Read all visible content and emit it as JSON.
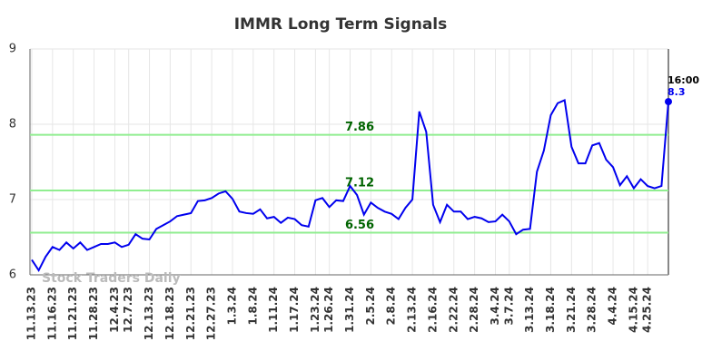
{
  "chart_data": {
    "type": "line",
    "title": "IMMR Long Term Signals",
    "watermark": "Stock Traders Daily",
    "annotation": "16:00",
    "categories": [
      "11.13.23",
      null,
      null,
      "11.16.23",
      null,
      null,
      "11.21.23",
      null,
      null,
      "11.28.23",
      null,
      null,
      "12.4.23",
      null,
      "12.7.23",
      null,
      null,
      "12.13.23",
      null,
      null,
      "12.18.23",
      null,
      null,
      "12.21.23",
      null,
      null,
      "12.27.23",
      null,
      null,
      "1.3.24",
      null,
      null,
      "1.8.24",
      null,
      null,
      "1.11.24",
      null,
      null,
      "1.17.24",
      null,
      null,
      "1.23.24",
      null,
      "1.26.24",
      null,
      null,
      "1.31.24",
      null,
      null,
      "2.5.24",
      null,
      null,
      "2.8.24",
      null,
      null,
      "2.13.24",
      null,
      null,
      "2.16.24",
      null,
      null,
      "2.22.24",
      null,
      null,
      "2.28.24",
      null,
      null,
      "3.4.24",
      null,
      "3.7.24",
      null,
      null,
      "3.13.24",
      null,
      null,
      "3.18.24",
      null,
      null,
      "3.21.24",
      null,
      null,
      "3.28.24",
      null,
      null,
      "4.4.24",
      null,
      null,
      "4.15.24",
      null,
      "4.25.24",
      null,
      null,
      null
    ],
    "series": [
      {
        "name": "IMMR",
        "color": "#0000ee",
        "values": [
          6.2,
          6.06,
          6.24,
          6.37,
          6.33,
          6.43,
          6.35,
          6.43,
          6.33,
          6.37,
          6.41,
          6.41,
          6.43,
          6.37,
          6.4,
          6.54,
          6.48,
          6.47,
          6.61,
          6.66,
          6.71,
          6.78,
          6.8,
          6.82,
          6.98,
          6.99,
          7.02,
          7.08,
          7.11,
          7.01,
          6.84,
          6.82,
          6.81,
          6.87,
          6.75,
          6.77,
          6.69,
          6.76,
          6.74,
          6.66,
          6.64,
          6.99,
          7.02,
          6.9,
          6.99,
          6.98,
          7.18,
          7.06,
          6.8,
          6.96,
          6.89,
          6.84,
          6.81,
          6.74,
          6.89,
          7.0,
          8.17,
          7.9,
          6.93,
          6.7,
          6.93,
          6.84,
          6.84,
          6.74,
          6.77,
          6.75,
          6.7,
          6.71,
          6.8,
          6.71,
          6.54,
          6.6,
          6.61,
          7.37,
          7.65,
          8.12,
          8.28,
          8.32,
          7.7,
          7.48,
          7.48,
          7.72,
          7.75,
          7.53,
          7.43,
          7.19,
          7.31,
          7.15,
          7.27,
          7.18,
          7.15,
          7.18,
          8.3
        ]
      }
    ],
    "reference_lines": [
      {
        "value": 7.86,
        "color": "#90ee90",
        "label_color": "#006400"
      },
      {
        "value": 7.12,
        "color": "#90ee90",
        "label_color": "#006400"
      },
      {
        "value": 6.56,
        "color": "#90ee90",
        "label_color": "#006400"
      }
    ],
    "ylim": [
      6,
      9
    ],
    "yticks": [
      6,
      7,
      8,
      9
    ],
    "grid": true
  }
}
